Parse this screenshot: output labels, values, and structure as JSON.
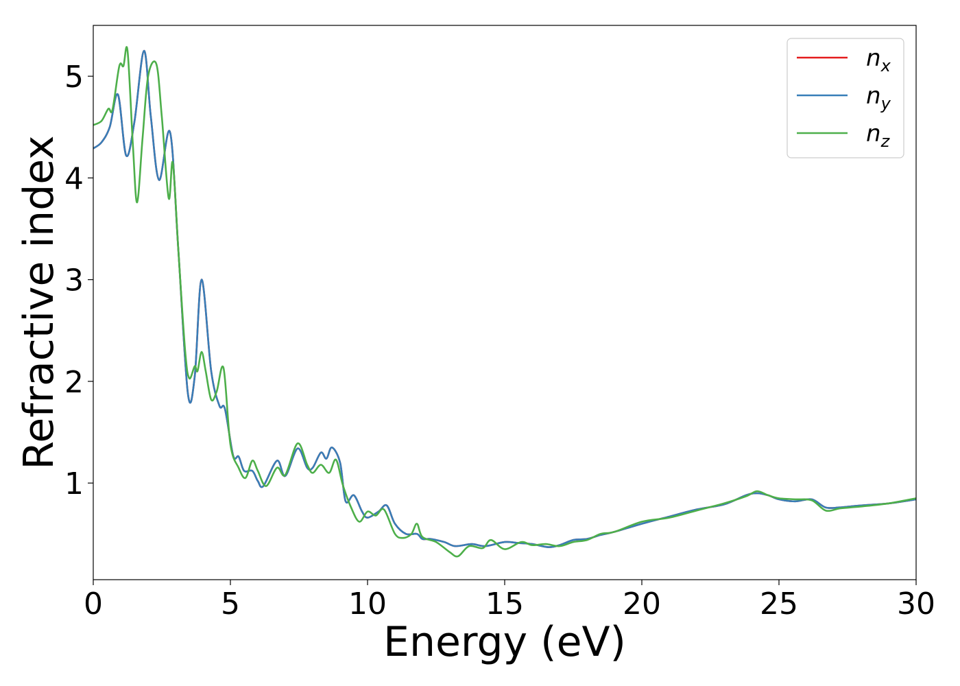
{
  "chart_data": {
    "type": "line",
    "xlabel": "Energy (eV)",
    "ylabel": "Refractive index",
    "xlim": [
      0,
      30
    ],
    "ylim": [
      0.05,
      5.5
    ],
    "xticks": [
      "0",
      "5",
      "10",
      "15",
      "20",
      "25",
      "30"
    ],
    "yticks": [
      "1",
      "2",
      "3",
      "4",
      "5"
    ],
    "grid": false,
    "legend_position": "top-right",
    "series": [
      {
        "name": "n",
        "subscript": "x",
        "color": "#e41a1c",
        "x": [
          0,
          0.3,
          0.6,
          0.9,
          1.2,
          1.5,
          1.85,
          2.1,
          2.4,
          2.8,
          3.1,
          3.45,
          3.7,
          3.95,
          4.3,
          4.6,
          4.8,
          5.1,
          5.3,
          5.5,
          5.8,
          6.0,
          6.2,
          6.7,
          7.0,
          7.45,
          7.8,
          8.0,
          8.3,
          8.5,
          8.7,
          9.0,
          9.2,
          9.5,
          9.8,
          10.0,
          10.4,
          10.7,
          11.0,
          11.4,
          11.8,
          12.0,
          12.3,
          12.8,
          13.2,
          13.8,
          14.3,
          15.0,
          15.5,
          16.0,
          16.6,
          17.0,
          17.5,
          18.0,
          18.5,
          19.0,
          20.0,
          21.0,
          22.0,
          23.0,
          23.8,
          24.2,
          24.6,
          25.0,
          25.6,
          26.2,
          26.7,
          27.2,
          27.6,
          28.0,
          29.0,
          30.0
        ],
        "values": [
          4.29,
          4.35,
          4.5,
          4.82,
          4.22,
          4.55,
          5.25,
          4.6,
          3.98,
          4.45,
          3.3,
          1.88,
          2.05,
          3.0,
          2.1,
          1.76,
          1.73,
          1.27,
          1.26,
          1.12,
          1.12,
          1.02,
          0.97,
          1.22,
          1.07,
          1.34,
          1.15,
          1.15,
          1.3,
          1.24,
          1.35,
          1.2,
          0.82,
          0.88,
          0.72,
          0.66,
          0.72,
          0.78,
          0.6,
          0.5,
          0.5,
          0.45,
          0.45,
          0.42,
          0.38,
          0.4,
          0.38,
          0.42,
          0.41,
          0.4,
          0.37,
          0.39,
          0.44,
          0.45,
          0.49,
          0.52,
          0.6,
          0.67,
          0.74,
          0.79,
          0.88,
          0.9,
          0.88,
          0.84,
          0.82,
          0.84,
          0.76,
          0.76,
          0.77,
          0.78,
          0.8,
          0.84
        ]
      },
      {
        "name": "n",
        "subscript": "y",
        "color": "#377eb8",
        "x": [
          0,
          0.3,
          0.6,
          0.9,
          1.2,
          1.5,
          1.85,
          2.1,
          2.4,
          2.8,
          3.1,
          3.45,
          3.7,
          3.95,
          4.3,
          4.6,
          4.8,
          5.1,
          5.3,
          5.5,
          5.8,
          6.0,
          6.2,
          6.7,
          7.0,
          7.45,
          7.8,
          8.0,
          8.3,
          8.5,
          8.7,
          9.0,
          9.2,
          9.5,
          9.8,
          10.0,
          10.4,
          10.7,
          11.0,
          11.4,
          11.8,
          12.0,
          12.3,
          12.8,
          13.2,
          13.8,
          14.3,
          15.0,
          15.5,
          16.0,
          16.6,
          17.0,
          17.5,
          18.0,
          18.5,
          19.0,
          20.0,
          21.0,
          22.0,
          23.0,
          23.8,
          24.2,
          24.6,
          25.0,
          25.6,
          26.2,
          26.7,
          27.2,
          27.6,
          28.0,
          29.0,
          30.0
        ],
        "values": [
          4.29,
          4.35,
          4.5,
          4.82,
          4.22,
          4.55,
          5.25,
          4.6,
          3.98,
          4.45,
          3.3,
          1.88,
          2.05,
          3.0,
          2.1,
          1.76,
          1.73,
          1.27,
          1.26,
          1.12,
          1.12,
          1.02,
          0.97,
          1.22,
          1.07,
          1.34,
          1.15,
          1.15,
          1.3,
          1.24,
          1.35,
          1.2,
          0.82,
          0.88,
          0.72,
          0.66,
          0.72,
          0.78,
          0.6,
          0.5,
          0.5,
          0.45,
          0.45,
          0.42,
          0.38,
          0.4,
          0.38,
          0.42,
          0.41,
          0.4,
          0.37,
          0.39,
          0.44,
          0.45,
          0.49,
          0.52,
          0.6,
          0.67,
          0.74,
          0.79,
          0.88,
          0.9,
          0.88,
          0.84,
          0.82,
          0.84,
          0.76,
          0.76,
          0.77,
          0.78,
          0.8,
          0.84
        ]
      },
      {
        "name": "n",
        "subscript": "z",
        "color": "#4daf4a",
        "x": [
          0,
          0.3,
          0.55,
          0.7,
          0.95,
          1.1,
          1.25,
          1.45,
          1.6,
          1.8,
          2.0,
          2.3,
          2.5,
          2.75,
          2.9,
          3.1,
          3.35,
          3.5,
          3.7,
          3.8,
          3.95,
          4.1,
          4.3,
          4.5,
          4.75,
          5.0,
          5.3,
          5.55,
          5.8,
          6.0,
          6.3,
          6.7,
          7.0,
          7.45,
          7.8,
          8.0,
          8.3,
          8.6,
          8.85,
          9.1,
          9.4,
          9.7,
          10.0,
          10.3,
          10.6,
          11.0,
          11.3,
          11.6,
          11.8,
          12.0,
          12.5,
          13.0,
          13.3,
          13.7,
          14.2,
          14.5,
          15.0,
          15.6,
          16.0,
          16.5,
          17.0,
          17.5,
          18.0,
          18.5,
          19.0,
          20.0,
          21.0,
          22.0,
          23.0,
          23.8,
          24.2,
          24.6,
          25.0,
          25.6,
          26.2,
          26.7,
          27.2,
          27.6,
          28.0,
          29.0,
          30.0
        ],
        "values": [
          4.52,
          4.56,
          4.68,
          4.67,
          5.1,
          5.1,
          5.25,
          4.3,
          3.76,
          4.4,
          5.0,
          5.12,
          4.6,
          3.8,
          4.15,
          3.3,
          2.3,
          2.03,
          2.15,
          2.1,
          2.29,
          2.1,
          1.82,
          1.9,
          2.13,
          1.38,
          1.15,
          1.05,
          1.22,
          1.12,
          0.97,
          1.15,
          1.08,
          1.39,
          1.18,
          1.1,
          1.18,
          1.1,
          1.23,
          0.98,
          0.76,
          0.62,
          0.72,
          0.68,
          0.74,
          0.5,
          0.46,
          0.5,
          0.6,
          0.47,
          0.42,
          0.32,
          0.28,
          0.38,
          0.36,
          0.44,
          0.35,
          0.42,
          0.39,
          0.4,
          0.38,
          0.42,
          0.44,
          0.5,
          0.52,
          0.62,
          0.66,
          0.73,
          0.8,
          0.87,
          0.92,
          0.88,
          0.85,
          0.84,
          0.83,
          0.73,
          0.75,
          0.76,
          0.77,
          0.8,
          0.85
        ]
      }
    ]
  }
}
